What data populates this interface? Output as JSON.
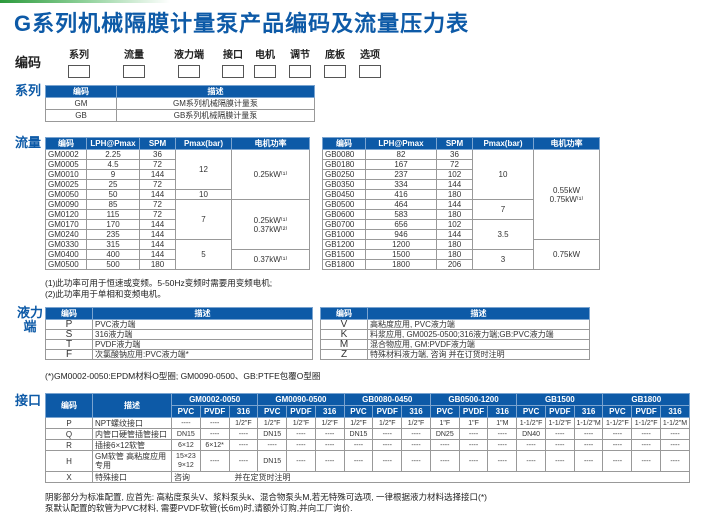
{
  "title": "G系列机械隔膜计量泵产品编码及流量压力表",
  "code_label": "编码",
  "code_slots": [
    "系列",
    "流量",
    "液力端",
    "接口",
    "电机",
    "调节",
    "底板",
    "选项"
  ],
  "series": {
    "label": "系列",
    "headers": [
      "编码",
      "描述"
    ],
    "rows": [
      [
        "GM",
        "GM系列机械隔膜计量泵"
      ],
      [
        "GB",
        "GB系列机械隔膜计量泵"
      ]
    ]
  },
  "flow": {
    "label": "流量",
    "headers": [
      "编码",
      "LPH@Pmax",
      "SPM",
      "Pmax(bar)",
      "电机功率"
    ],
    "left": {
      "rows": [
        [
          "GM0002",
          "2.25",
          "36"
        ],
        [
          "GM0005",
          "4.5",
          "72"
        ],
        [
          "GM0010",
          "9",
          "144"
        ],
        [
          "GM0025",
          "25",
          "72"
        ],
        [
          "GM0050",
          "50",
          "144"
        ],
        [
          "GM0090",
          "85",
          "72"
        ],
        [
          "GM0120",
          "115",
          "72"
        ],
        [
          "GM0170",
          "170",
          "144"
        ],
        [
          "GM0240",
          "235",
          "144"
        ],
        [
          "GM0330",
          "315",
          "144"
        ],
        [
          "GM0400",
          "400",
          "144"
        ],
        [
          "GM0500",
          "500",
          "180"
        ]
      ],
      "pmax": [
        {
          "value": "12",
          "rows": 4
        },
        {
          "value": "10",
          "rows": 1
        },
        {
          "value": "7",
          "rows": 4
        },
        {
          "value": "5",
          "rows": 3
        }
      ],
      "motor": [
        {
          "value": "0.25kW⁽¹⁾",
          "rows": 5
        },
        {
          "value": "0.25kW⁽¹⁾ 0.37kW⁽²⁾",
          "rows": 5
        },
        {
          "value": "0.37kW⁽¹⁾",
          "rows": 2
        }
      ]
    },
    "right": {
      "rows": [
        [
          "GB0080",
          "82",
          "36"
        ],
        [
          "GB0180",
          "167",
          "72"
        ],
        [
          "GB0250",
          "237",
          "102"
        ],
        [
          "GB0350",
          "334",
          "144"
        ],
        [
          "GB0450",
          "416",
          "180"
        ],
        [
          "GB0500",
          "464",
          "144"
        ],
        [
          "GB0600",
          "583",
          "180"
        ],
        [
          "GB0700",
          "656",
          "102"
        ],
        [
          "GB1000",
          "946",
          "144"
        ],
        [
          "GB1200",
          "1200",
          "180"
        ],
        [
          "GB1500",
          "1500",
          "180"
        ],
        [
          "GB1800",
          "1800",
          "206"
        ]
      ],
      "pmax": [
        {
          "value": "10",
          "rows": 5
        },
        {
          "value": "7",
          "rows": 2
        },
        {
          "value": "3.5",
          "rows": 3
        },
        {
          "value": "3",
          "rows": 2
        }
      ],
      "motor": [
        {
          "value": "0.55kW 0.75kW⁽¹⁾",
          "rows": 9
        },
        {
          "value": "0.75kW",
          "rows": 3
        }
      ]
    },
    "notes": "(1)此功率可用于恒速或变频。5-50Hz变频时需要用变频电机;\n(2)此功率用于单相和变频电机。"
  },
  "liquid_end": {
    "label": "液力端",
    "headers": [
      "编码",
      "描述"
    ],
    "left": [
      [
        "P",
        "PVC液力端"
      ],
      [
        "S",
        "316液力端"
      ],
      [
        "T",
        "PVDF液力端"
      ],
      [
        "F",
        "次氯酸钠应用:PVC液力端*"
      ]
    ],
    "right": [
      [
        "V",
        "高粘度应用, PVC液力端"
      ],
      [
        "K",
        "料浆应用, GM0025-0500;316液力端;GB:PVC液力端"
      ],
      [
        "M",
        "混合物应用, GM:PVDF液力端"
      ],
      [
        "Z",
        "特殊材料液力端, 咨询          并在订货时注明"
      ]
    ],
    "note": "(*)GM0002-0050:EPDM材料O型圈; GM0090-0500、GB:PTFE包覆O型圈"
  },
  "interface": {
    "label": "接口",
    "headers": [
      "编码",
      "描述"
    ],
    "groups": [
      "GM0002-0050",
      "GM0090-0500",
      "GB0080-0450",
      "GB0500-1200",
      "GB1500",
      "GB1800"
    ],
    "materials": [
      "PVC",
      "PVDF",
      "316"
    ],
    "rows": [
      {
        "code": "P",
        "desc": "NPT螺纹接口",
        "cells": [
          "----",
          "----",
          "1/2\"F",
          "1/2\"F",
          "1/2\"F",
          "1/2\"F",
          "1/2\"F",
          "1/2\"F",
          "1/2\"F",
          "1\"F",
          "1\"F",
          "1\"M",
          "1-1/2\"F",
          "1-1/2\"F",
          "1-1/2\"M",
          "1-1/2\"F",
          "1-1/2\"F",
          "1-1/2\"M"
        ]
      },
      {
        "code": "Q",
        "desc": "内管口硬管插管接口",
        "cells": [
          "DN15",
          "----",
          "----",
          "DN15",
          "----",
          "----",
          "DN15",
          "----",
          "----",
          "DN25",
          "----",
          "----",
          "DN40",
          "----",
          "----",
          "----",
          "----",
          "----"
        ]
      },
      {
        "code": "R",
        "desc": "插接6×12软管",
        "cells": [
          "6×12",
          "6×12*",
          "----",
          "----",
          "----",
          "----",
          "----",
          "----",
          "----",
          "----",
          "----",
          "----",
          "----",
          "----",
          "----",
          "----",
          "----",
          "----"
        ]
      },
      {
        "code": "H",
        "desc": "GM软管 高粘度应用专用",
        "cells": [
          "15×23 9×12",
          "----",
          "----",
          "DN15",
          "----",
          "----",
          "----",
          "----",
          "----",
          "----",
          "----",
          "----",
          "----",
          "----",
          "----",
          "----",
          "----",
          "----"
        ]
      },
      {
        "code": "X",
        "desc": "特殊接口",
        "span": "咨询                    并在定货时注明"
      }
    ],
    "notes": "阴影部分为标准配置, 应首先: 高粘度泵头V、浆料泵头k、混合物泵头M,若无特殊可选项, 一律根据液力材料选择接口(*)\n泵默认配置的软管为PVC材料, 需要PVDF软管(长6m)时,请额外订购,并向工厂询价."
  },
  "colors": {
    "brand": "#0d5aa7",
    "accent": "#2c9a3c"
  }
}
